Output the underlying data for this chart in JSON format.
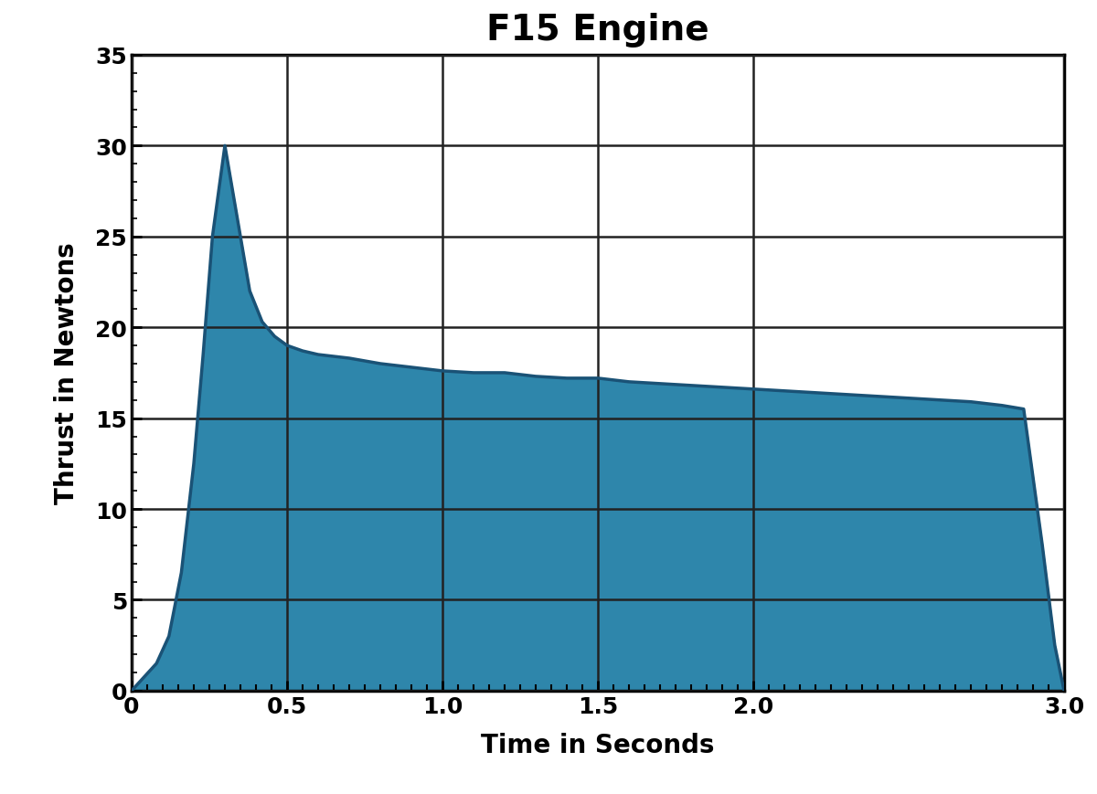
{
  "title": "F15 Engine",
  "xlabel": "Time in Seconds",
  "ylabel": "Thrust in Newtons",
  "xlim": [
    0,
    3.0
  ],
  "ylim": [
    0,
    35
  ],
  "xticks": [
    0,
    0.5,
    1.0,
    1.5,
    2.0,
    3.0
  ],
  "xtick_labels": [
    "0",
    "0.5",
    "1.0",
    "1.5",
    "2.0",
    "3.0"
  ],
  "yticks": [
    0,
    5,
    10,
    15,
    20,
    25,
    30,
    35
  ],
  "thrust_curve_x": [
    0.0,
    0.08,
    0.12,
    0.16,
    0.2,
    0.23,
    0.26,
    0.3,
    0.34,
    0.38,
    0.42,
    0.46,
    0.5,
    0.55,
    0.6,
    0.7,
    0.8,
    0.9,
    1.0,
    1.1,
    1.2,
    1.3,
    1.4,
    1.5,
    1.6,
    1.7,
    1.8,
    1.9,
    2.0,
    2.1,
    2.2,
    2.3,
    2.4,
    2.5,
    2.6,
    2.7,
    2.8,
    2.87,
    2.93,
    2.97,
    3.0
  ],
  "thrust_curve_y": [
    0.0,
    1.5,
    3.0,
    6.5,
    12.5,
    18.5,
    25.0,
    30.0,
    26.0,
    22.0,
    20.3,
    19.5,
    19.0,
    18.7,
    18.5,
    18.3,
    18.0,
    17.8,
    17.6,
    17.5,
    17.5,
    17.3,
    17.2,
    17.2,
    17.0,
    16.9,
    16.8,
    16.7,
    16.6,
    16.5,
    16.4,
    16.3,
    16.2,
    16.1,
    16.0,
    15.9,
    15.7,
    15.5,
    8.0,
    2.5,
    0.0
  ],
  "fill_color": "#2e86ab",
  "line_color": "#1a5276",
  "line_width": 2.5,
  "background_color": "#ffffff",
  "grid_color": "#222222",
  "grid_linewidth": 1.8,
  "title_fontsize": 28,
  "label_fontsize": 20,
  "tick_fontsize": 18,
  "title_fontweight": "bold",
  "label_fontweight": "bold",
  "minor_tick_count": 30
}
